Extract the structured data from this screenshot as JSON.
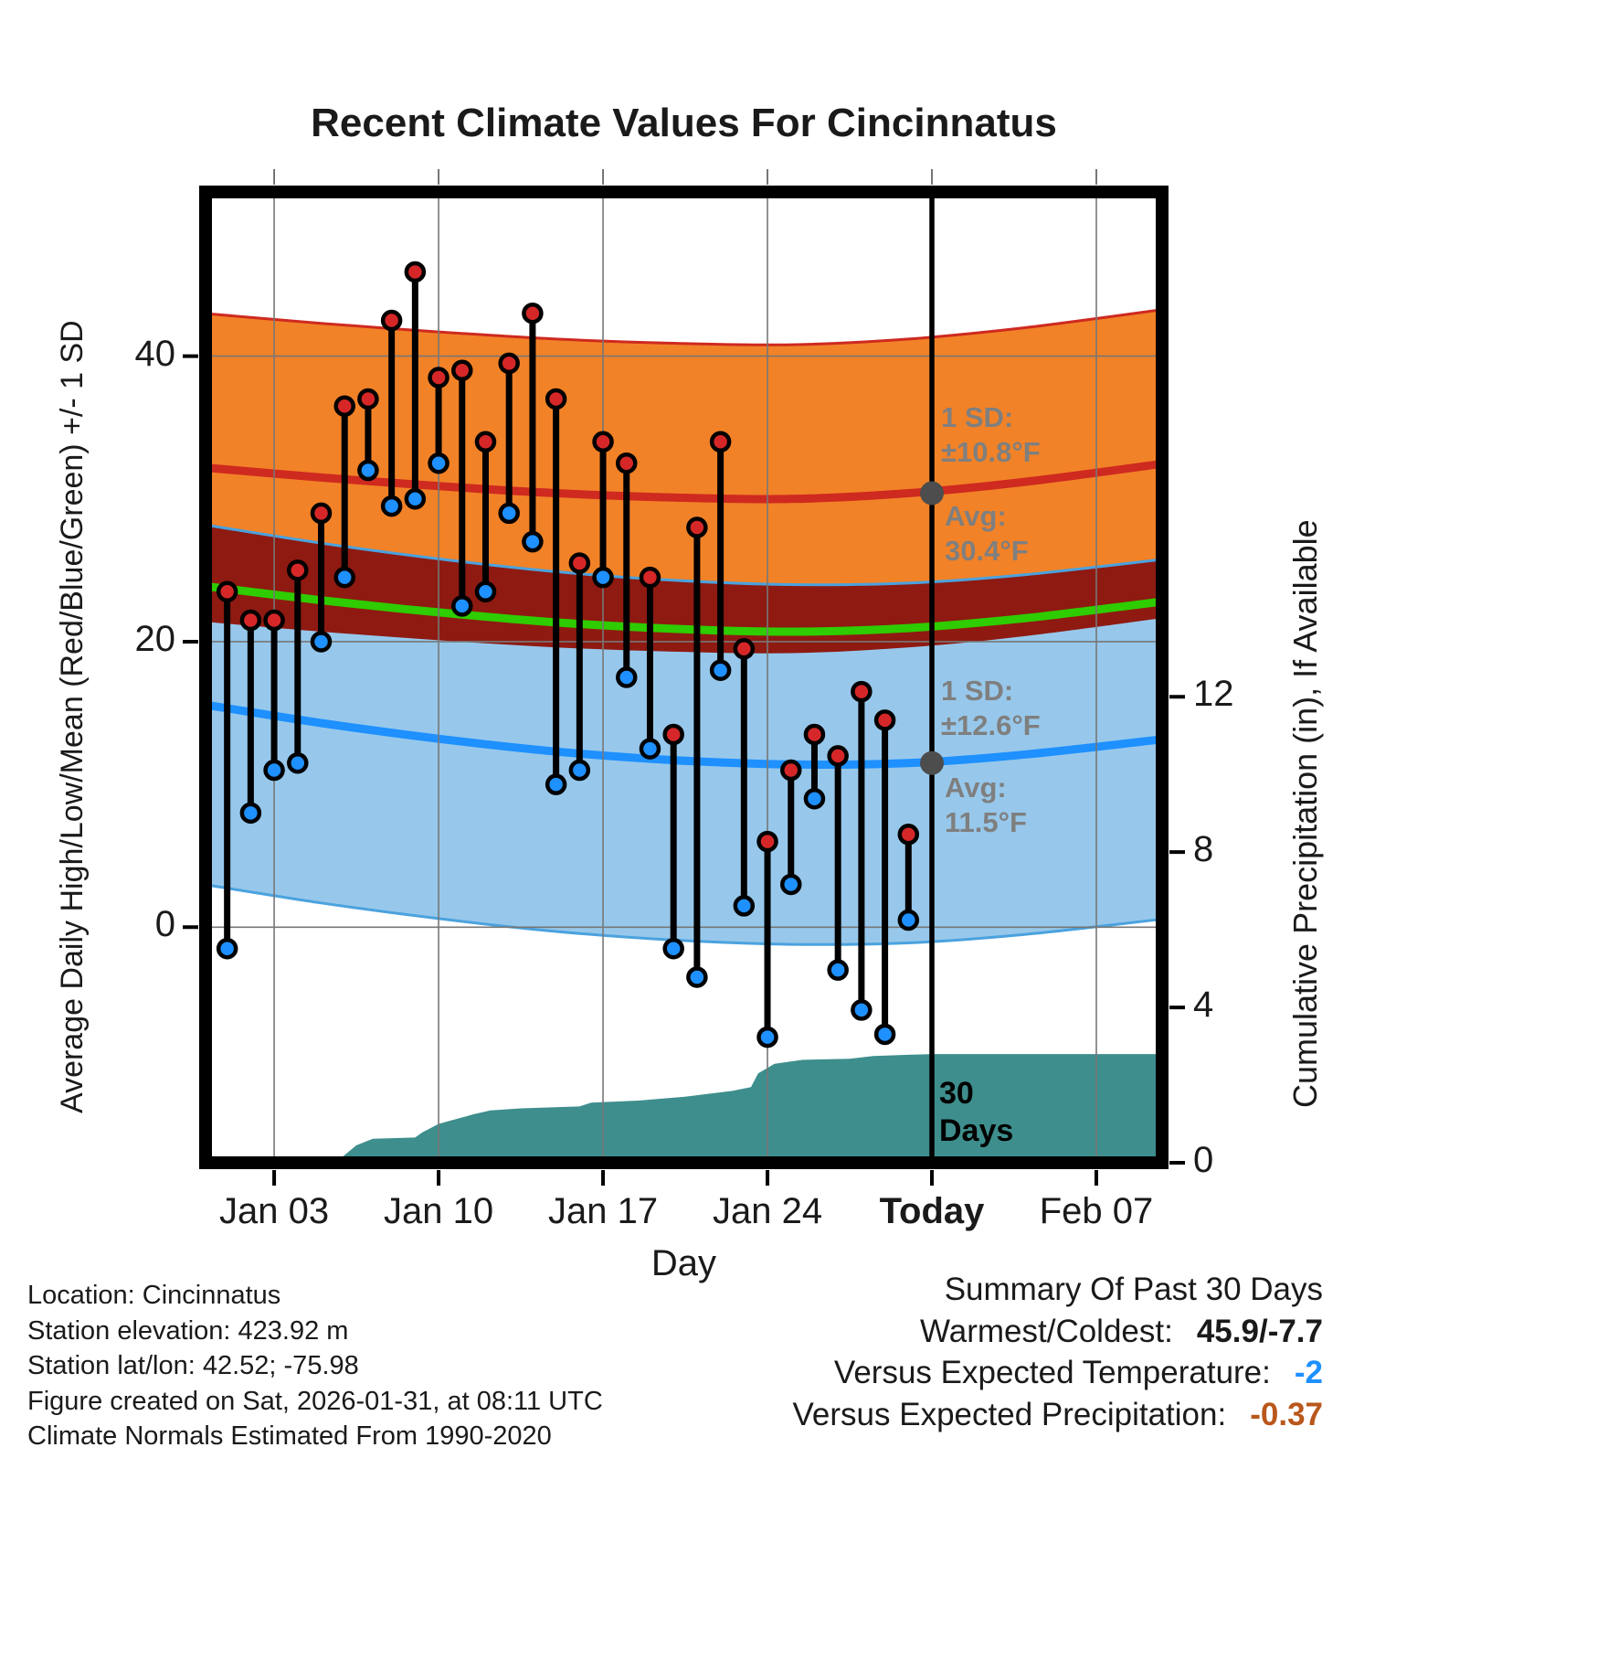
{
  "title": "Recent Climate Values For Cincinnatus",
  "chart_data": {
    "type": "line",
    "title": "Recent Climate Values For Cincinnatus",
    "xlabel": "Day",
    "ylabel": "Average Daily High/Low/Mean (Red/Blue/Green) +/- 1 SD",
    "ylabel_right": "Cumulative Precipitation (in), If Available",
    "x_domain_days": [
      0.08,
      40.8
    ],
    "temp_ylim": [
      -16.5,
      51.5
    ],
    "precip_ylim": [
      0,
      25
    ],
    "grid": true,
    "x_ticks": [
      {
        "day": 3,
        "label": "Jan 03",
        "bold": false
      },
      {
        "day": 10,
        "label": "Jan 10",
        "bold": false
      },
      {
        "day": 17,
        "label": "Jan 17",
        "bold": false
      },
      {
        "day": 24,
        "label": "Jan 24",
        "bold": false
      },
      {
        "day": 31,
        "label": "Today",
        "bold": true
      },
      {
        "day": 38,
        "label": "Feb 07",
        "bold": false
      }
    ],
    "temp_ticks": [
      0,
      20,
      40
    ],
    "precip_ticks": [
      0,
      4,
      8,
      12
    ],
    "today_day": 31,
    "normals": {
      "days": [
        0,
        5,
        10,
        15,
        20,
        25,
        30,
        35,
        41
      ],
      "avg_high": [
        32.2,
        31.5,
        30.9,
        30.4,
        30.1,
        30.0,
        30.4,
        31.2,
        32.5
      ],
      "avg_low": [
        15.6,
        14.3,
        13.2,
        12.3,
        11.7,
        11.4,
        11.5,
        12.1,
        13.2
      ],
      "sd_high": 10.8,
      "sd_low": 12.6,
      "avg_high_today": 30.4,
      "avg_low_today": 11.5
    },
    "daily": {
      "days": [
        1,
        2,
        3,
        4,
        5,
        6,
        7,
        8,
        9,
        10,
        11,
        12,
        13,
        14,
        15,
        16,
        17,
        18,
        19,
        20,
        21,
        22,
        23,
        24,
        25,
        26,
        27,
        28,
        29,
        30
      ],
      "high": [
        23.5,
        21.5,
        21.5,
        25,
        29,
        36.5,
        37,
        42.5,
        45.9,
        38.5,
        39,
        34,
        39.5,
        43,
        37,
        25.5,
        34,
        32.5,
        24.5,
        13.5,
        28,
        34,
        19.5,
        6,
        11,
        13.5,
        12,
        16.5,
        14.5,
        6.5
      ],
      "low": [
        -1.5,
        8,
        11,
        11.5,
        20,
        24.5,
        32,
        29.5,
        30,
        32.5,
        22.5,
        23.5,
        29,
        27,
        10,
        11,
        24.5,
        17.5,
        12.5,
        -1.5,
        -3.5,
        18,
        1.5,
        -7.7,
        3,
        9,
        -3,
        -5.8,
        -7.5,
        0.5
      ]
    },
    "precip_cumulative": {
      "days": [
        0,
        5.3,
        5.8,
        6.5,
        7.2,
        9.0,
        9.3,
        10.0,
        11.5,
        12.2,
        13.5,
        16.0,
        16.5,
        18.5,
        20.5,
        22.5,
        23.3,
        23.6,
        24.3,
        25.5,
        27.5,
        28.5,
        30.0,
        31.0,
        40.8
      ],
      "values": [
        0,
        0,
        0.1,
        0.45,
        0.62,
        0.65,
        0.78,
        1.0,
        1.25,
        1.35,
        1.4,
        1.45,
        1.55,
        1.6,
        1.7,
        1.85,
        1.95,
        2.3,
        2.55,
        2.65,
        2.68,
        2.75,
        2.78,
        2.8,
        2.8
      ]
    },
    "avg_markers": [
      {
        "day": 31,
        "value": 30.4
      },
      {
        "day": 31,
        "value": 11.5
      }
    ]
  },
  "annotations": {
    "high_sd": [
      "1 SD:",
      "±10.8°F"
    ],
    "high_avg": [
      "Avg:",
      "30.4°F"
    ],
    "low_sd": [
      "1 SD:",
      "±12.6°F"
    ],
    "low_avg": [
      "Avg:",
      "11.5°F"
    ],
    "period": [
      "30",
      "Days"
    ]
  },
  "footer": {
    "lines": [
      "Location: Cincinnatus",
      "Station elevation: 423.92 m",
      "Station lat/lon: 42.52; -75.98",
      "Figure created on Sat, 2026-01-31, at 08:11 UTC",
      "Climate Normals Estimated From 1990-2020"
    ]
  },
  "summary": {
    "heading": "Summary Of Past 30 Days",
    "rows": [
      {
        "label": "Warmest/Coldest:",
        "value": "45.9/-7.7",
        "value_color": "#1a1a1a"
      },
      {
        "label": "Versus Expected Temperature:",
        "value": "-2",
        "value_color": "#1E90FF"
      },
      {
        "label": "Versus Expected Precipitation:",
        "value": "-0.37",
        "value_color": "#B9571C"
      }
    ]
  },
  "colors": {
    "high_band": "#F28227",
    "avg_high_line": "#CE2A20",
    "low_band": "#97C8EB",
    "low_band_edge": "#4BA2DE",
    "avg_low_line": "#1E90FF",
    "overlap_band": "#8E1A12",
    "mean_line": "#2ECC00",
    "precip_fill": "#3E8E8D",
    "grid": "#777777",
    "today_line": "#000000",
    "stem": "#000000",
    "high_dot": "#D62728",
    "low_dot": "#1E90FF",
    "avg_marker": "#4D4D4D"
  }
}
